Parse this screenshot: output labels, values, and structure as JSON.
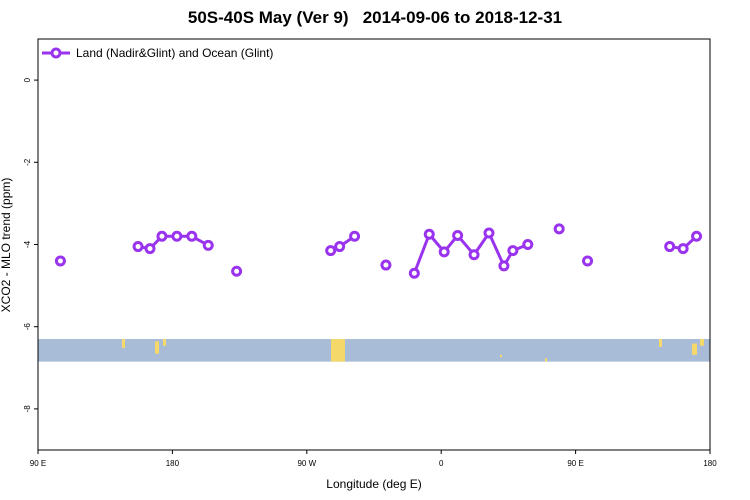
{
  "chart_data": {
    "type": "line",
    "title": "50S-40S May (Ver 9)   2014-09-06 to 2018-12-31",
    "xlabel": "Longitude (deg E)",
    "ylabel": "XCO2 - MLO trend (ppm)",
    "xlim": [
      90,
      450
    ],
    "ylim": [
      -9,
      1
    ],
    "x_ticks": [
      {
        "value": 90,
        "label": "90 E"
      },
      {
        "value": 180,
        "label": "180"
      },
      {
        "value": 270,
        "label": "90 W"
      },
      {
        "value": 360,
        "label": "0"
      },
      {
        "value": 450,
        "label": "90 E"
      },
      {
        "value": 540,
        "label": "180"
      }
    ],
    "y_ticks": [
      {
        "value": 0,
        "label": "0"
      },
      {
        "value": -2,
        "label": "-2"
      },
      {
        "value": -4,
        "label": "-4"
      },
      {
        "value": -6,
        "label": "-6"
      },
      {
        "value": -8,
        "label": "-8"
      }
    ],
    "grid": false,
    "legend_position": "top-left",
    "series": [
      {
        "name": "Land (Nadir&Glint) and Ocean (Glint)",
        "color": "#9933ee",
        "marker": "open-circle",
        "segments": [
          {
            "x": [
              105
            ],
            "y": [
              -4.4
            ]
          },
          {
            "x": [
              157,
              165,
              173,
              183,
              193,
              204
            ],
            "y": [
              -4.05,
              -4.1,
              -3.8,
              -3.8,
              -3.8,
              -4.02
            ]
          },
          {
            "x": [
              223
            ],
            "y": [
              -4.65
            ]
          },
          {
            "x": [
              286,
              292,
              302
            ],
            "y": [
              -4.15,
              -4.05,
              -3.8
            ]
          },
          {
            "x": [
              323
            ],
            "y": [
              -4.5
            ]
          },
          {
            "x": [
              342,
              352,
              362,
              371,
              382,
              392,
              402,
              408,
              418
            ],
            "y": [
              -4.7,
              -3.75,
              -4.18,
              -3.78,
              -4.25,
              -3.72,
              -4.52,
              -4.15,
              -4.0
            ]
          },
          {
            "x": [
              439
            ],
            "y": [
              -3.62
            ]
          },
          {
            "x": [
              458
            ],
            "y": [
              -4.4
            ]
          },
          {
            "x": [
              513,
              522,
              531
            ],
            "y": [
              -4.05,
              -4.1,
              -3.8
            ]
          }
        ]
      }
    ],
    "map_band": {
      "y_top": -6.3,
      "y_bottom": -6.85,
      "ocean_color": "#a8bcd8",
      "land_color": "#f5d86a"
    }
  }
}
